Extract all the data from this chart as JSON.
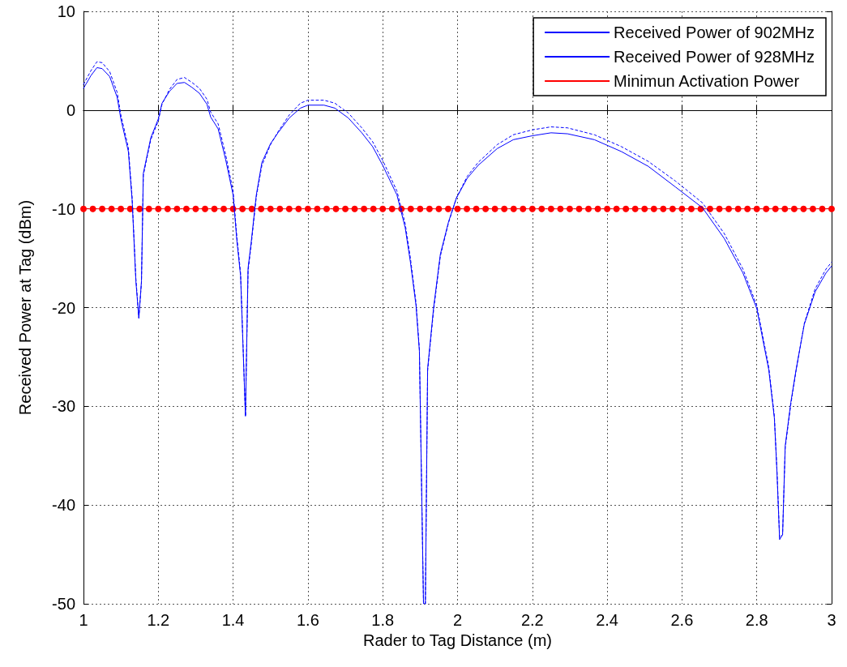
{
  "chart_data": {
    "type": "line",
    "xlabel": "Rader to Tag Distance (m)",
    "ylabel": "Received Power at Tag (dBm)",
    "xlim": [
      1,
      3
    ],
    "xticks": [
      1,
      1.2,
      1.4,
      1.6,
      1.8,
      2,
      2.2,
      2.4,
      2.6,
      2.8,
      3
    ],
    "ylim": [
      -50,
      10
    ],
    "yticks": [
      -50,
      -40,
      -30,
      -20,
      -10,
      0,
      10
    ],
    "grid": true,
    "legend": "top right",
    "marker": "none",
    "series": [
      {
        "name": "Received Power of 902MHz",
        "color": "#0000ff",
        "line_style": "dotted",
        "x": [
          1.0,
          1.02,
          1.036,
          1.05,
          1.07,
          1.09,
          1.1,
          1.12,
          1.13,
          1.14,
          1.148,
          1.155,
          1.16,
          1.18,
          1.2,
          1.21,
          1.23,
          1.25,
          1.27,
          1.29,
          1.31,
          1.33,
          1.34,
          1.36,
          1.38,
          1.4,
          1.41,
          1.42,
          1.433,
          1.44,
          1.448,
          1.462,
          1.477,
          1.5,
          1.52,
          1.55,
          1.58,
          1.6,
          1.643,
          1.672,
          1.708,
          1.744,
          1.773,
          1.8,
          1.838,
          1.86,
          1.874,
          1.889,
          1.898,
          1.909,
          1.914,
          1.92,
          1.936,
          1.954,
          1.976,
          1.997,
          2.026,
          2.055,
          2.106,
          2.149,
          2.2,
          2.25,
          2.294,
          2.366,
          2.438,
          2.51,
          2.583,
          2.655,
          2.713,
          2.763,
          2.8,
          2.832,
          2.847,
          2.854,
          2.861,
          2.869,
          2.876,
          2.891,
          2.905,
          2.927,
          2.956,
          2.985,
          3.0
        ],
        "values": [
          2.6,
          4.0,
          4.9,
          4.8,
          3.9,
          1.8,
          -0.5,
          -3.8,
          -8.8,
          -17.0,
          -21.0,
          -17.5,
          -6.6,
          -3.0,
          -1.1,
          0.6,
          2.1,
          3.1,
          3.3,
          2.8,
          2.2,
          1.1,
          -0.2,
          -1.4,
          -4.5,
          -8.2,
          -12.8,
          -16.5,
          -31,
          -16.3,
          -13.8,
          -8.8,
          -5.6,
          -3.5,
          -2.2,
          -0.5,
          0.7,
          1.0,
          1.0,
          0.7,
          -0.3,
          -1.8,
          -3.2,
          -5.1,
          -8.2,
          -11.5,
          -15.0,
          -19.5,
          -24.2,
          -50,
          -50,
          -26.4,
          -20.3,
          -14.8,
          -11.4,
          -8.9,
          -6.7,
          -5.3,
          -3.5,
          -2.5,
          -2.0,
          -1.7,
          -1.8,
          -2.5,
          -3.7,
          -5.2,
          -7.2,
          -9.4,
          -12.5,
          -16.1,
          -19.8,
          -26.0,
          -31.0,
          -36.5,
          -43.3,
          -43.0,
          -34.2,
          -29.8,
          -26.4,
          -21.6,
          -18.1,
          -16.1,
          -15.4
        ]
      },
      {
        "name": "Received Power of 928MHz",
        "color": "#0000ff",
        "line_style": "solid",
        "x": [
          1.0,
          1.02,
          1.036,
          1.05,
          1.07,
          1.09,
          1.1,
          1.12,
          1.13,
          1.14,
          1.148,
          1.155,
          1.16,
          1.18,
          1.2,
          1.21,
          1.23,
          1.25,
          1.27,
          1.29,
          1.31,
          1.33,
          1.34,
          1.36,
          1.38,
          1.4,
          1.41,
          1.42,
          1.433,
          1.44,
          1.448,
          1.462,
          1.477,
          1.5,
          1.52,
          1.55,
          1.58,
          1.6,
          1.643,
          1.672,
          1.708,
          1.744,
          1.773,
          1.8,
          1.838,
          1.86,
          1.874,
          1.889,
          1.898,
          1.909,
          1.914,
          1.92,
          1.936,
          1.954,
          1.976,
          1.997,
          2.026,
          2.055,
          2.106,
          2.149,
          2.2,
          2.25,
          2.294,
          2.366,
          2.438,
          2.51,
          2.583,
          2.655,
          2.713,
          2.763,
          2.8,
          2.832,
          2.847,
          2.854,
          2.861,
          2.869,
          2.876,
          2.891,
          2.905,
          2.927,
          2.956,
          2.985,
          3.0
        ],
        "values": [
          2.2,
          3.5,
          4.3,
          4.2,
          3.4,
          1.3,
          -0.9,
          -4.2,
          -9.1,
          -17.3,
          -21.1,
          -17.3,
          -6.4,
          -2.8,
          -0.9,
          0.7,
          1.9,
          2.7,
          2.8,
          2.3,
          1.7,
          0.6,
          -0.7,
          -1.9,
          -5.0,
          -8.6,
          -13.2,
          -16.8,
          -31,
          -16,
          -13.5,
          -8.6,
          -5.3,
          -3.4,
          -2.3,
          -0.8,
          0.2,
          0.5,
          0.5,
          0.2,
          -0.8,
          -2.3,
          -3.7,
          -5.6,
          -8.6,
          -11.9,
          -15.4,
          -19.8,
          -24.4,
          -50,
          -50,
          -26.2,
          -20,
          -14.6,
          -11.3,
          -8.9,
          -6.9,
          -5.6,
          -3.9,
          -3.0,
          -2.6,
          -2.3,
          -2.4,
          -3.0,
          -4.2,
          -5.7,
          -7.8,
          -9.9,
          -13.0,
          -16.5,
          -20.1,
          -26.3,
          -31.2,
          -36.7,
          -43.5,
          -43.0,
          -34.0,
          -29.6,
          -26.3,
          -21.7,
          -18.4,
          -16.5,
          -15.8
        ]
      },
      {
        "name": "Minimun Activation Power",
        "color": "#ff0000",
        "line_style": "solid",
        "marker": "circle",
        "x": [
          1,
          1.025,
          1.05,
          1.075,
          1.1,
          1.125,
          1.15,
          1.175,
          1.2,
          1.225,
          1.25,
          1.275,
          1.3,
          1.325,
          1.35,
          1.375,
          1.4,
          1.425,
          1.45,
          1.475,
          1.5,
          1.525,
          1.55,
          1.575,
          1.6,
          1.625,
          1.65,
          1.675,
          1.7,
          1.725,
          1.75,
          1.775,
          1.8,
          1.825,
          1.85,
          1.875,
          1.9,
          1.925,
          1.95,
          1.975,
          2,
          2.025,
          2.05,
          2.075,
          2.1,
          2.125,
          2.15,
          2.175,
          2.2,
          2.225,
          2.25,
          2.275,
          2.3,
          2.325,
          2.35,
          2.375,
          2.4,
          2.425,
          2.45,
          2.475,
          2.5,
          2.525,
          2.55,
          2.575,
          2.6,
          2.625,
          2.65,
          2.675,
          2.7,
          2.725,
          2.75,
          2.775,
          2.8,
          2.825,
          2.85,
          2.875,
          2.9,
          2.925,
          2.95,
          2.975,
          3
        ],
        "values": [
          -10,
          -10,
          -10,
          -10,
          -10,
          -10,
          -10,
          -10,
          -10,
          -10,
          -10,
          -10,
          -10,
          -10,
          -10,
          -10,
          -10,
          -10,
          -10,
          -10,
          -10,
          -10,
          -10,
          -10,
          -10,
          -10,
          -10,
          -10,
          -10,
          -10,
          -10,
          -10,
          -10,
          -10,
          -10,
          -10,
          -10,
          -10,
          -10,
          -10,
          -10,
          -10,
          -10,
          -10,
          -10,
          -10,
          -10,
          -10,
          -10,
          -10,
          -10,
          -10,
          -10,
          -10,
          -10,
          -10,
          -10,
          -10,
          -10,
          -10,
          -10,
          -10,
          -10,
          -10,
          -10,
          -10,
          -10,
          -10,
          -10,
          -10,
          -10,
          -10,
          -10,
          -10,
          -10,
          -10,
          -10,
          -10,
          -10,
          -10,
          -10
        ]
      }
    ]
  }
}
